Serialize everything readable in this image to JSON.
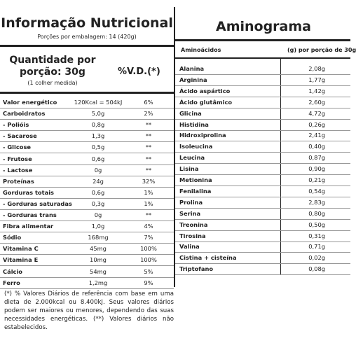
{
  "nutrition": {
    "title": "Informação Nutricional",
    "servings": "Porções por embalagem: 14 (420g)",
    "portion": "Quantidade por porção: 30g",
    "portion_note": "(1 colher medida)",
    "vd_header": "%V.D.(*)",
    "rows": [
      [
        "Valor energético",
        "120Kcal = 504kJ",
        "6%"
      ],
      [
        "Carboidratos",
        "5,0g",
        "2%"
      ],
      [
        "- Polióis",
        "0,8g",
        "**"
      ],
      [
        "- Sacarose",
        "1,3g",
        "**"
      ],
      [
        "- Glicose",
        "0,5g",
        "**"
      ],
      [
        "- Frutose",
        "0,6g",
        "**"
      ],
      [
        "- Lactose",
        "0g",
        "**"
      ],
      [
        "Proteínas",
        "24g",
        "32%"
      ],
      [
        "Gorduras totais",
        "0,6g",
        "1%"
      ],
      [
        "- Gorduras saturadas",
        "0,3g",
        "1%"
      ],
      [
        "- Gorduras trans",
        "0g",
        "**"
      ],
      [
        "Fibra alimentar",
        "1,0g",
        "4%"
      ],
      [
        "Sódio",
        "168mg",
        "7%"
      ],
      [
        "Vitamina C",
        "45mg",
        "100%"
      ],
      [
        "Vitamina E",
        "10mg",
        "100%"
      ],
      [
        "Cálcio",
        "54mg",
        "5%"
      ],
      [
        "Ferro",
        "1,2mg",
        "9%"
      ]
    ],
    "footnote": "(*) % Valores Diários de referência com base em uma dieta de 2.000kcal ou 8.400kJ. Seus valores diários podem ser maiores ou menores, dependendo das suas necessidades energéticas. (**) Valores diários não estabelecidos."
  },
  "aminogram": {
    "title": "Aminograma",
    "header": [
      "Aminoácidos",
      "(g) por porção de 30g"
    ],
    "rows": [
      [
        "Alanina",
        "2,08g"
      ],
      [
        "Arginina",
        "1,77g"
      ],
      [
        "Ácido aspártico",
        "1,42g"
      ],
      [
        "Ácido glutâmico",
        "2,60g"
      ],
      [
        "Glicina",
        "4,72g"
      ],
      [
        "Histidina",
        "0,26g"
      ],
      [
        "Hidroxiprolina",
        "2,41g"
      ],
      [
        "Isoleucina",
        "0,40g"
      ],
      [
        "Leucina",
        "0,87g"
      ],
      [
        "Lisina",
        "0,90g"
      ],
      [
        "Metionina",
        "0,21g"
      ],
      [
        "Fenilalina",
        "0,54g"
      ],
      [
        "Prolina",
        "2,83g"
      ],
      [
        "Serina",
        "0,80g"
      ],
      [
        "Treonina",
        "0,50g"
      ],
      [
        "Tirosina",
        "0,31g"
      ],
      [
        "Valina",
        "0,71g"
      ],
      [
        "Cistina + cisteína",
        "0,02g"
      ],
      [
        "Triptofano",
        "0,08g"
      ]
    ]
  }
}
